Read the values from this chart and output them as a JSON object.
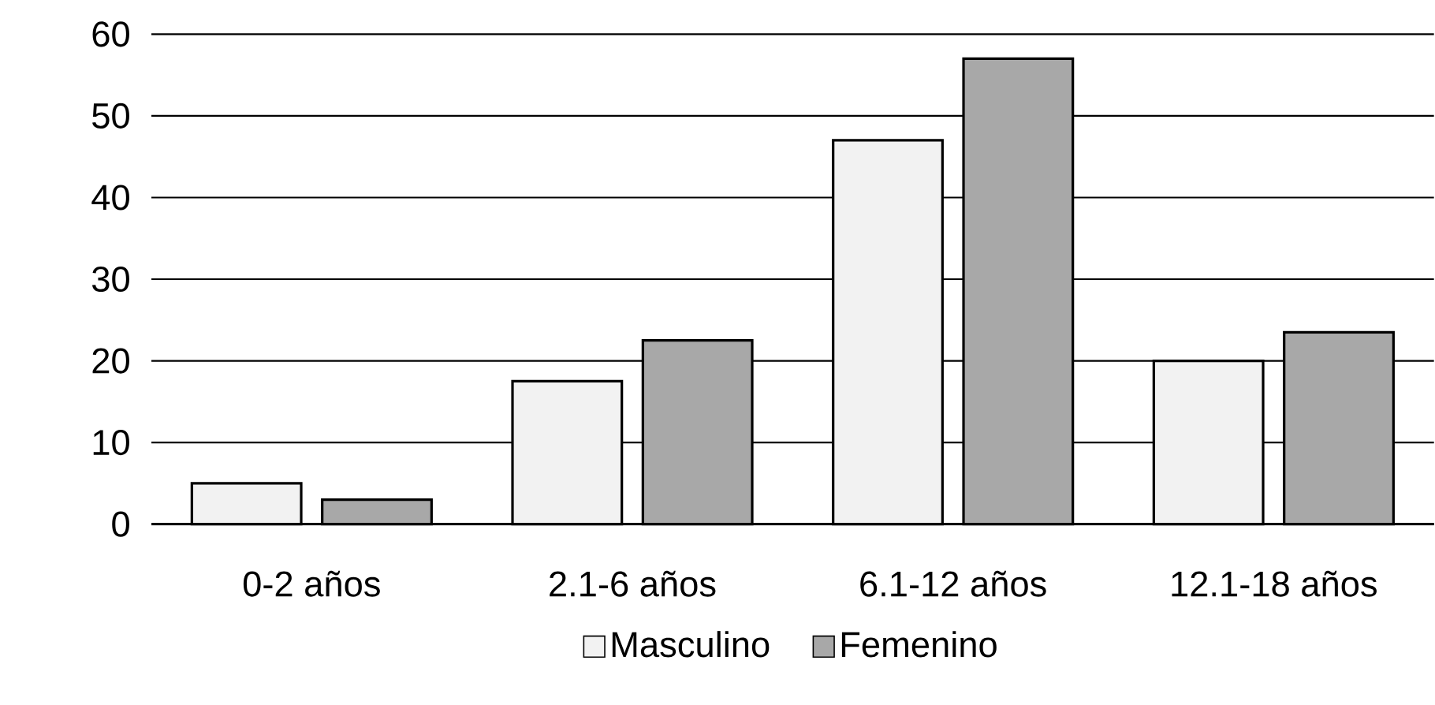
{
  "chart_data": {
    "type": "bar",
    "categories": [
      "0-2 años",
      "2.1-6 años",
      "6.1-12 años",
      "12.1-18 años"
    ],
    "series": [
      {
        "name": "Masculino",
        "color": "#f2f2f2",
        "values": [
          5,
          17.5,
          47,
          20
        ]
      },
      {
        "name": "Femenino",
        "color": "#a8a8a8",
        "values": [
          3,
          22.5,
          57,
          23.5
        ]
      }
    ],
    "ylim": [
      0,
      60
    ],
    "yticks": [
      0,
      10,
      20,
      30,
      40,
      50,
      60
    ],
    "grid": "y",
    "legend": "bottom"
  }
}
